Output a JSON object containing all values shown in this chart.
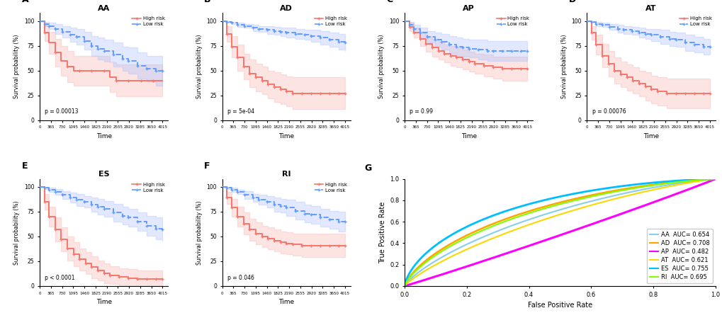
{
  "panels": [
    "A",
    "B",
    "C",
    "D",
    "E",
    "F",
    "G"
  ],
  "titles": [
    "AA",
    "AD",
    "AP",
    "AT",
    "ES",
    "RI",
    ""
  ],
  "pvalues": [
    "p = 0.00013",
    "p = 5e-04",
    "p = 0.99",
    "p = 0.00076",
    "p < 0.0001",
    "p = 0.046"
  ],
  "high_risk_color": "#F8766D",
  "low_risk_color": "#619CFF",
  "high_risk_fill": "#F8B4B0",
  "low_risk_fill": "#AABFFF",
  "xlabel": "Time",
  "ylabel": "Survival probability (%)",
  "xticks": [
    0,
    365,
    730,
    1095,
    1460,
    1825,
    2190,
    2555,
    2920,
    3285,
    3650,
    4015
  ],
  "yticks": [
    0,
    25,
    50,
    75,
    100
  ],
  "roc_colors": {
    "AA": "#87CEEB",
    "AD": "#FFA500",
    "AP": "#FF00FF",
    "AT": "#FFD700",
    "ES": "#00BFFF",
    "RI": "#7FFF00"
  },
  "roc_aucs": {
    "AA": 0.654,
    "AD": 0.708,
    "AP": 0.482,
    "AT": 0.621,
    "ES": 0.755,
    "RI": 0.695
  },
  "km_data": {
    "AA": {
      "high_time": [
        0,
        150,
        300,
        500,
        700,
        900,
        1100,
        1300,
        1500,
        1700,
        1900,
        2100,
        2300,
        2500,
        2700,
        2900,
        3100,
        3300,
        3500,
        3700,
        4015
      ],
      "high_surv": [
        1.0,
        0.88,
        0.78,
        0.68,
        0.6,
        0.54,
        0.5,
        0.5,
        0.5,
        0.5,
        0.5,
        0.5,
        0.43,
        0.4,
        0.4,
        0.4,
        0.4,
        0.4,
        0.4,
        0.4,
        0.4
      ],
      "high_upper": [
        1.0,
        0.96,
        0.89,
        0.82,
        0.75,
        0.7,
        0.65,
        0.65,
        0.65,
        0.65,
        0.65,
        0.65,
        0.58,
        0.56,
        0.56,
        0.56,
        0.56,
        0.56,
        0.56,
        0.56,
        0.56
      ],
      "high_lower": [
        1.0,
        0.8,
        0.67,
        0.54,
        0.45,
        0.38,
        0.35,
        0.35,
        0.35,
        0.35,
        0.35,
        0.35,
        0.28,
        0.24,
        0.24,
        0.24,
        0.24,
        0.24,
        0.24,
        0.24,
        0.24
      ],
      "low_time": [
        0,
        150,
        300,
        500,
        730,
        1000,
        1200,
        1460,
        1700,
        1900,
        2100,
        2400,
        2700,
        2900,
        3200,
        3500,
        3800,
        4015
      ],
      "low_surv": [
        1.0,
        0.97,
        0.95,
        0.92,
        0.89,
        0.86,
        0.84,
        0.8,
        0.75,
        0.72,
        0.7,
        0.66,
        0.62,
        0.6,
        0.55,
        0.52,
        0.5,
        0.5
      ],
      "low_upper": [
        1.0,
        0.99,
        0.98,
        0.97,
        0.95,
        0.93,
        0.92,
        0.89,
        0.85,
        0.83,
        0.81,
        0.78,
        0.74,
        0.73,
        0.68,
        0.65,
        0.65,
        0.65
      ],
      "low_lower": [
        1.0,
        0.95,
        0.92,
        0.87,
        0.83,
        0.79,
        0.76,
        0.71,
        0.65,
        0.61,
        0.59,
        0.54,
        0.5,
        0.47,
        0.42,
        0.39,
        0.35,
        0.35
      ]
    },
    "AD": {
      "high_time": [
        0,
        150,
        300,
        500,
        700,
        900,
        1100,
        1300,
        1500,
        1700,
        1900,
        2100,
        2300,
        2600,
        2900,
        3200,
        3500,
        3800,
        4015
      ],
      "high_surv": [
        1.0,
        0.87,
        0.74,
        0.63,
        0.54,
        0.47,
        0.43,
        0.4,
        0.36,
        0.33,
        0.31,
        0.29,
        0.27,
        0.27,
        0.27,
        0.27,
        0.27,
        0.27,
        0.27
      ],
      "high_upper": [
        1.0,
        0.95,
        0.85,
        0.76,
        0.67,
        0.61,
        0.57,
        0.54,
        0.5,
        0.48,
        0.46,
        0.44,
        0.43,
        0.43,
        0.43,
        0.43,
        0.43,
        0.43,
        0.43
      ],
      "high_lower": [
        1.0,
        0.79,
        0.63,
        0.5,
        0.41,
        0.33,
        0.29,
        0.26,
        0.22,
        0.18,
        0.16,
        0.14,
        0.11,
        0.11,
        0.11,
        0.11,
        0.11,
        0.11,
        0.11
      ],
      "low_time": [
        0,
        150,
        300,
        500,
        730,
        1000,
        1200,
        1460,
        1700,
        1900,
        2100,
        2400,
        2700,
        2900,
        3200,
        3500,
        3800,
        4015
      ],
      "low_surv": [
        1.0,
        0.99,
        0.98,
        0.96,
        0.95,
        0.93,
        0.92,
        0.91,
        0.9,
        0.89,
        0.88,
        0.87,
        0.86,
        0.85,
        0.83,
        0.81,
        0.79,
        0.78
      ],
      "low_upper": [
        1.0,
        1.0,
        0.99,
        0.98,
        0.97,
        0.96,
        0.95,
        0.95,
        0.94,
        0.93,
        0.93,
        0.92,
        0.91,
        0.91,
        0.9,
        0.88,
        0.87,
        0.86
      ],
      "low_lower": [
        1.0,
        0.98,
        0.97,
        0.94,
        0.93,
        0.9,
        0.89,
        0.87,
        0.86,
        0.85,
        0.83,
        0.82,
        0.81,
        0.79,
        0.76,
        0.74,
        0.71,
        0.7
      ]
    },
    "AP": {
      "high_time": [
        0,
        150,
        300,
        500,
        700,
        900,
        1100,
        1300,
        1500,
        1700,
        1900,
        2100,
        2300,
        2600,
        2900,
        3200,
        3500,
        3800,
        4015
      ],
      "high_surv": [
        1.0,
        0.94,
        0.88,
        0.82,
        0.77,
        0.73,
        0.7,
        0.67,
        0.65,
        0.63,
        0.61,
        0.59,
        0.57,
        0.55,
        0.53,
        0.52,
        0.52,
        0.52,
        0.52
      ],
      "high_upper": [
        1.0,
        0.98,
        0.93,
        0.89,
        0.85,
        0.82,
        0.79,
        0.76,
        0.75,
        0.73,
        0.71,
        0.69,
        0.67,
        0.66,
        0.64,
        0.64,
        0.64,
        0.64,
        0.64
      ],
      "high_lower": [
        1.0,
        0.9,
        0.83,
        0.75,
        0.69,
        0.64,
        0.61,
        0.58,
        0.55,
        0.53,
        0.51,
        0.49,
        0.47,
        0.44,
        0.42,
        0.4,
        0.4,
        0.4,
        0.4
      ],
      "low_time": [
        0,
        150,
        300,
        500,
        730,
        1000,
        1200,
        1460,
        1700,
        1900,
        2100,
        2400,
        2700,
        2900,
        3200,
        3500,
        3800,
        4015
      ],
      "low_surv": [
        1.0,
        0.96,
        0.92,
        0.88,
        0.84,
        0.81,
        0.79,
        0.76,
        0.74,
        0.73,
        0.72,
        0.71,
        0.7,
        0.7,
        0.7,
        0.7,
        0.7,
        0.7
      ],
      "low_upper": [
        1.0,
        0.99,
        0.96,
        0.93,
        0.9,
        0.88,
        0.87,
        0.85,
        0.83,
        0.82,
        0.81,
        0.81,
        0.8,
        0.8,
        0.8,
        0.8,
        0.8,
        0.8
      ],
      "low_lower": [
        1.0,
        0.93,
        0.88,
        0.83,
        0.78,
        0.74,
        0.71,
        0.67,
        0.65,
        0.64,
        0.63,
        0.61,
        0.6,
        0.6,
        0.6,
        0.6,
        0.6,
        0.6
      ]
    },
    "AT": {
      "high_time": [
        0,
        150,
        300,
        500,
        700,
        900,
        1100,
        1300,
        1500,
        1700,
        1900,
        2100,
        2300,
        2600,
        2900,
        3200,
        3500,
        3800,
        4015
      ],
      "high_surv": [
        1.0,
        0.88,
        0.76,
        0.65,
        0.57,
        0.5,
        0.46,
        0.43,
        0.4,
        0.37,
        0.34,
        0.31,
        0.29,
        0.27,
        0.27,
        0.27,
        0.27,
        0.27,
        0.27
      ],
      "high_upper": [
        1.0,
        0.95,
        0.86,
        0.77,
        0.7,
        0.63,
        0.59,
        0.56,
        0.53,
        0.5,
        0.48,
        0.45,
        0.43,
        0.42,
        0.42,
        0.42,
        0.42,
        0.42,
        0.42
      ],
      "high_lower": [
        1.0,
        0.81,
        0.66,
        0.53,
        0.44,
        0.37,
        0.33,
        0.3,
        0.27,
        0.24,
        0.2,
        0.17,
        0.15,
        0.12,
        0.12,
        0.12,
        0.12,
        0.12,
        0.12
      ],
      "low_time": [
        0,
        150,
        300,
        500,
        730,
        1000,
        1200,
        1460,
        1700,
        1900,
        2100,
        2400,
        2700,
        2900,
        3200,
        3500,
        3800,
        4015
      ],
      "low_surv": [
        1.0,
        0.99,
        0.97,
        0.96,
        0.94,
        0.92,
        0.91,
        0.9,
        0.88,
        0.87,
        0.86,
        0.84,
        0.82,
        0.81,
        0.78,
        0.76,
        0.74,
        0.74
      ],
      "low_upper": [
        1.0,
        1.0,
        0.99,
        0.98,
        0.97,
        0.96,
        0.95,
        0.94,
        0.93,
        0.92,
        0.92,
        0.91,
        0.89,
        0.88,
        0.86,
        0.84,
        0.82,
        0.82
      ],
      "low_lower": [
        1.0,
        0.98,
        0.95,
        0.94,
        0.91,
        0.88,
        0.87,
        0.86,
        0.83,
        0.82,
        0.8,
        0.77,
        0.75,
        0.74,
        0.7,
        0.68,
        0.66,
        0.66
      ]
    },
    "ES": {
      "high_time": [
        0,
        150,
        300,
        500,
        700,
        900,
        1100,
        1300,
        1500,
        1700,
        1900,
        2100,
        2300,
        2600,
        2900,
        3200,
        3500,
        3800,
        4015
      ],
      "high_surv": [
        1.0,
        0.85,
        0.7,
        0.57,
        0.47,
        0.38,
        0.32,
        0.27,
        0.23,
        0.19,
        0.16,
        0.13,
        0.11,
        0.09,
        0.08,
        0.07,
        0.07,
        0.07,
        0.07
      ],
      "high_upper": [
        1.0,
        0.93,
        0.8,
        0.69,
        0.59,
        0.5,
        0.44,
        0.38,
        0.34,
        0.3,
        0.26,
        0.23,
        0.2,
        0.18,
        0.17,
        0.16,
        0.16,
        0.16,
        0.16
      ],
      "high_lower": [
        1.0,
        0.77,
        0.6,
        0.45,
        0.35,
        0.26,
        0.2,
        0.16,
        0.12,
        0.08,
        0.06,
        0.03,
        0.02,
        0.0,
        0.0,
        0.0,
        0.0,
        0.0,
        0.0
      ],
      "low_time": [
        0,
        150,
        300,
        500,
        730,
        1000,
        1200,
        1460,
        1700,
        1900,
        2100,
        2400,
        2700,
        2900,
        3200,
        3500,
        3800,
        4015
      ],
      "low_surv": [
        1.0,
        0.99,
        0.97,
        0.95,
        0.92,
        0.89,
        0.87,
        0.85,
        0.82,
        0.8,
        0.78,
        0.74,
        0.71,
        0.69,
        0.65,
        0.61,
        0.58,
        0.57
      ],
      "low_upper": [
        1.0,
        1.0,
        0.99,
        0.98,
        0.96,
        0.94,
        0.93,
        0.91,
        0.89,
        0.88,
        0.86,
        0.83,
        0.8,
        0.78,
        0.74,
        0.71,
        0.69,
        0.68
      ],
      "low_lower": [
        1.0,
        0.98,
        0.95,
        0.92,
        0.88,
        0.84,
        0.81,
        0.79,
        0.75,
        0.72,
        0.7,
        0.65,
        0.62,
        0.6,
        0.56,
        0.51,
        0.47,
        0.46
      ]
    },
    "RI": {
      "high_time": [
        0,
        150,
        300,
        500,
        700,
        900,
        1100,
        1300,
        1500,
        1700,
        1900,
        2100,
        2300,
        2600,
        2900,
        3200,
        3500,
        3800,
        4015
      ],
      "high_surv": [
        1.0,
        0.89,
        0.79,
        0.7,
        0.63,
        0.57,
        0.53,
        0.5,
        0.48,
        0.46,
        0.44,
        0.43,
        0.42,
        0.41,
        0.41,
        0.41,
        0.41,
        0.41,
        0.41
      ],
      "high_upper": [
        1.0,
        0.95,
        0.88,
        0.8,
        0.74,
        0.68,
        0.64,
        0.61,
        0.59,
        0.57,
        0.55,
        0.54,
        0.53,
        0.53,
        0.53,
        0.53,
        0.53,
        0.53,
        0.53
      ],
      "high_lower": [
        1.0,
        0.83,
        0.7,
        0.6,
        0.52,
        0.46,
        0.42,
        0.39,
        0.37,
        0.35,
        0.33,
        0.32,
        0.31,
        0.29,
        0.29,
        0.29,
        0.29,
        0.29,
        0.29
      ],
      "low_time": [
        0,
        150,
        300,
        500,
        730,
        1000,
        1200,
        1460,
        1700,
        1900,
        2100,
        2400,
        2700,
        2900,
        3200,
        3500,
        3800,
        4015
      ],
      "low_surv": [
        1.0,
        0.99,
        0.97,
        0.95,
        0.92,
        0.89,
        0.87,
        0.85,
        0.82,
        0.81,
        0.79,
        0.76,
        0.73,
        0.72,
        0.69,
        0.67,
        0.65,
        0.65
      ],
      "low_upper": [
        1.0,
        1.0,
        0.99,
        0.97,
        0.96,
        0.93,
        0.92,
        0.91,
        0.89,
        0.88,
        0.87,
        0.85,
        0.82,
        0.81,
        0.78,
        0.76,
        0.75,
        0.75
      ],
      "low_lower": [
        1.0,
        0.98,
        0.95,
        0.93,
        0.88,
        0.85,
        0.82,
        0.79,
        0.75,
        0.74,
        0.71,
        0.67,
        0.64,
        0.63,
        0.6,
        0.58,
        0.55,
        0.55
      ]
    }
  }
}
